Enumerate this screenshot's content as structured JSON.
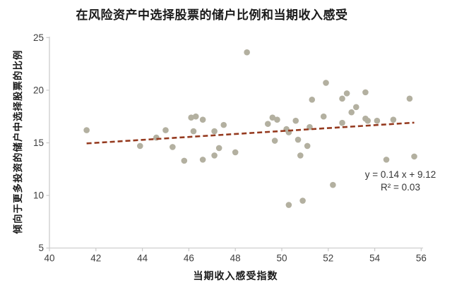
{
  "title": "在风险资产中选择股票的储户比例和当期收入感受",
  "chart_data": {
    "type": "scatter",
    "title": "在风险资产中选择股票的储户比例和当期收入感受",
    "xlabel": "当期收入感受指数",
    "ylabel": "倾向于更多投资的储户中选择股票的比例",
    "xlim": [
      40,
      56
    ],
    "ylim": [
      5,
      25
    ],
    "xticks": [
      40,
      42,
      44,
      46,
      48,
      50,
      52,
      54,
      56
    ],
    "yticks": [
      5,
      10,
      15,
      20,
      25
    ],
    "grid": false,
    "legend": false,
    "points": [
      [
        41.6,
        16.2
      ],
      [
        43.9,
        14.7
      ],
      [
        44.6,
        15.5
      ],
      [
        45.0,
        16.2
      ],
      [
        45.3,
        14.6
      ],
      [
        45.8,
        13.3
      ],
      [
        46.1,
        17.4
      ],
      [
        46.2,
        16.1
      ],
      [
        46.3,
        17.5
      ],
      [
        46.6,
        17.2
      ],
      [
        46.6,
        13.4
      ],
      [
        47.1,
        16.1
      ],
      [
        47.1,
        13.8
      ],
      [
        47.3,
        14.5
      ],
      [
        47.5,
        16.7
      ],
      [
        48.0,
        14.1
      ],
      [
        48.5,
        23.6
      ],
      [
        49.4,
        16.8
      ],
      [
        49.6,
        17.4
      ],
      [
        49.7,
        15.2
      ],
      [
        49.8,
        17.2
      ],
      [
        50.2,
        16.3
      ],
      [
        50.3,
        16.0
      ],
      [
        50.3,
        9.1
      ],
      [
        50.6,
        17.1
      ],
      [
        50.7,
        15.3
      ],
      [
        50.8,
        13.8
      ],
      [
        50.9,
        9.5
      ],
      [
        51.1,
        14.7
      ],
      [
        51.2,
        16.5
      ],
      [
        51.3,
        19.1
      ],
      [
        51.8,
        17.5
      ],
      [
        51.9,
        20.7
      ],
      [
        52.2,
        11.0
      ],
      [
        52.6,
        19.2
      ],
      [
        52.6,
        16.9
      ],
      [
        52.8,
        19.7
      ],
      [
        53.0,
        17.9
      ],
      [
        53.2,
        18.4
      ],
      [
        53.6,
        19.8
      ],
      [
        53.6,
        17.3
      ],
      [
        53.7,
        17.1
      ],
      [
        54.1,
        17.1
      ],
      [
        54.5,
        13.4
      ],
      [
        54.8,
        17.2
      ],
      [
        55.5,
        19.2
      ],
      [
        55.7,
        13.7
      ]
    ],
    "trendline": {
      "slope": 0.14,
      "intercept": 9.12,
      "x_start": 41.6,
      "x_end": 55.7,
      "style": "dashed"
    },
    "annotation": {
      "line1": "y = 0.14 x + 9.12",
      "line2": "R² = 0.03"
    },
    "colors": {
      "point": "#b3b0a0",
      "trendline": "#953a1f",
      "axis": "#c9c9c9",
      "tick_text": "#3d3d3d",
      "title_text": "#1a1a1a"
    }
  }
}
